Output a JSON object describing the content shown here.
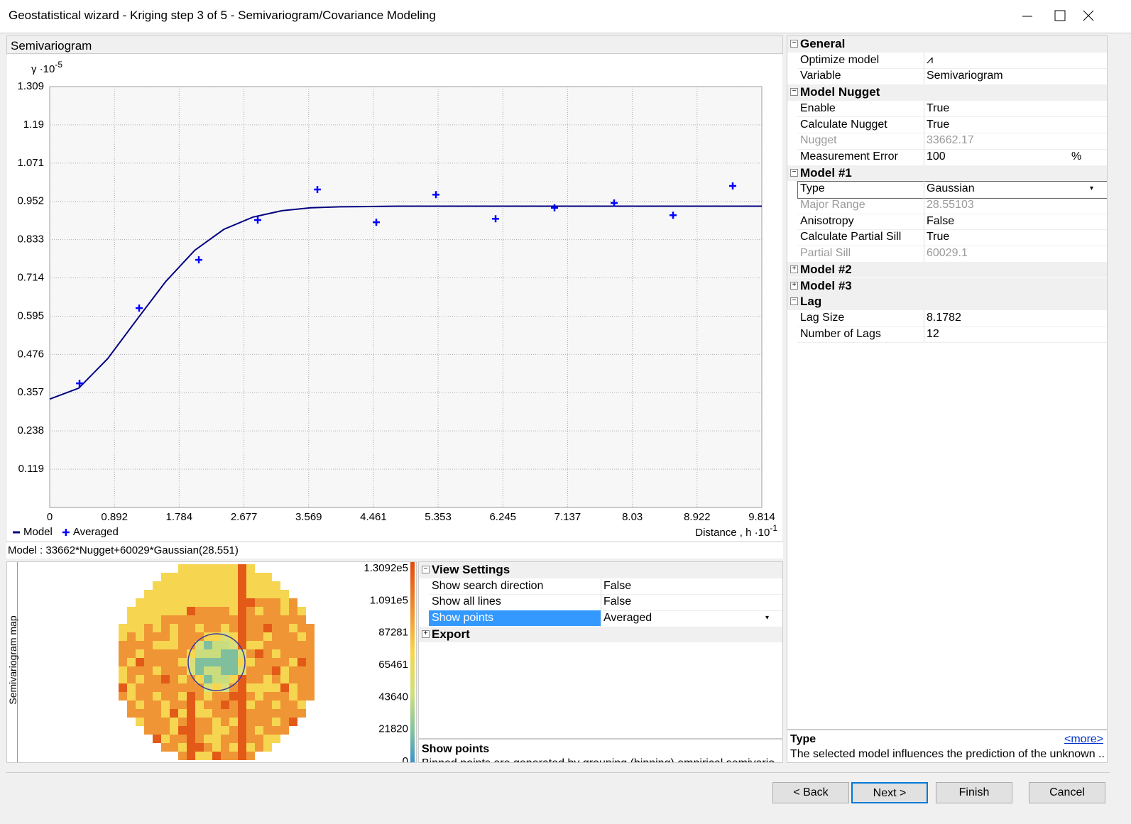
{
  "window": {
    "title": "Geostatistical wizard - Kriging step 3 of 5 - Semivariogram/Covariance Modeling"
  },
  "chart_panel": {
    "title": "Semivariogram"
  },
  "chart_data": {
    "type": "line",
    "y_label": "γ ·10",
    "y_label_exponent": "-5",
    "x_label": "Distance , h ·10",
    "x_label_exponent": "-1",
    "xlim": [
      0,
      9.814
    ],
    "ylim": [
      0,
      1.309
    ],
    "xticks": [
      0,
      0.892,
      1.784,
      2.677,
      3.569,
      4.461,
      5.353,
      6.245,
      7.137,
      8.03,
      8.922,
      9.814
    ],
    "yticks": [
      0.119,
      0.238,
      0.357,
      0.476,
      0.595,
      0.714,
      0.833,
      0.952,
      1.071,
      1.19,
      1.309
    ],
    "grid": true,
    "legend": "bottom-left",
    "series": [
      {
        "name": "Model",
        "color": "#000080",
        "type": "line",
        "x": [
          0,
          0.4,
          0.8,
          1.2,
          1.6,
          2.0,
          2.4,
          2.8,
          3.2,
          3.6,
          4.0,
          4.8,
          9.814
        ],
        "values": [
          0.337,
          0.371,
          0.463,
          0.584,
          0.703,
          0.8,
          0.865,
          0.903,
          0.923,
          0.932,
          0.935,
          0.937,
          0.937
        ]
      },
      {
        "name": "Averaged",
        "color": "#0000ff",
        "type": "scatter",
        "x": [
          0.411,
          1.233,
          2.055,
          2.867,
          3.689,
          4.501,
          5.323,
          6.145,
          6.957,
          7.779,
          8.591,
          9.413
        ],
        "values": [
          0.386,
          0.62,
          0.77,
          0.894,
          0.989,
          0.887,
          0.973,
          0.898,
          0.932,
          0.947,
          0.909,
          1.0
        ]
      }
    ]
  },
  "model_formula": "Model : 33662*Nugget+60029*Gaussian(28.551)",
  "map": {
    "side_label": "Semivariogram map",
    "colorbar_labels": [
      "1.3092e5",
      "1.091e5",
      "87281",
      "65461",
      "43640",
      "21820",
      "0"
    ]
  },
  "view_settings": {
    "sections": [
      {
        "name": "View Settings",
        "expanded": true,
        "rows": [
          {
            "name": "Show search direction",
            "value": "False"
          },
          {
            "name": "Show all lines",
            "value": "False"
          },
          {
            "name": "Show points",
            "value": "Averaged",
            "selected": true
          }
        ]
      },
      {
        "name": "Export",
        "expanded": false,
        "rows": []
      }
    ],
    "help": {
      "title": "Show points",
      "text": "Binned points are generated by grouping (binning) empirical semivario"
    }
  },
  "properties": {
    "sections": [
      {
        "name": "General",
        "expanded": true,
        "rows": [
          {
            "name": "Optimize model",
            "value": "⩘"
          },
          {
            "name": "Variable",
            "value": "Semivariogram"
          }
        ]
      },
      {
        "name": "Model Nugget",
        "expanded": true,
        "rows": [
          {
            "name": "Enable",
            "value": "True"
          },
          {
            "name": "Calculate Nugget",
            "value": "True"
          },
          {
            "name": "Nugget",
            "value": "33662.17",
            "disabled": true
          },
          {
            "name": "Measurement Error",
            "value": "100",
            "unit": "%"
          }
        ]
      },
      {
        "name": "Model #1",
        "expanded": true,
        "rows": [
          {
            "name": "Type",
            "value": "Gaussian",
            "selected": true
          },
          {
            "name": "Major Range",
            "value": "28.55103",
            "disabled": true
          },
          {
            "name": "Anisotropy",
            "value": "False"
          },
          {
            "name": "Calculate Partial Sill",
            "value": "True"
          },
          {
            "name": "Partial Sill",
            "value": "60029.1",
            "disabled": true
          }
        ]
      },
      {
        "name": "Model #2",
        "expanded": false,
        "rows": []
      },
      {
        "name": "Model #3",
        "expanded": false,
        "rows": []
      },
      {
        "name": "Lag",
        "expanded": true,
        "rows": [
          {
            "name": "Lag Size",
            "value": "8.1782"
          },
          {
            "name": "Number of Lags",
            "value": "12"
          }
        ]
      }
    ],
    "help": {
      "title": "Type",
      "more": "<more>",
      "text": "The selected model influences the prediction of the unknown ..."
    }
  },
  "buttons": [
    "< Back",
    "Next >",
    "Finish",
    "Cancel"
  ]
}
